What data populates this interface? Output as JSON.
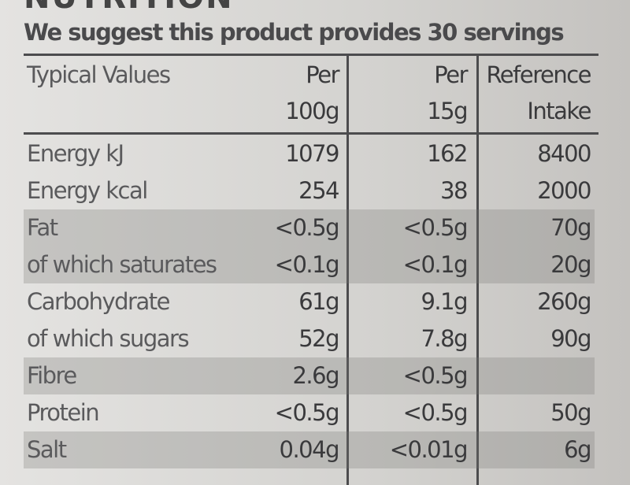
{
  "title": "NUTRITION",
  "subtitle": "We suggest this product provides 30 servings",
  "table": {
    "header": [
      [
        "Typical Values"
      ],
      [
        "Per",
        "100g"
      ],
      [
        "Per",
        "15g"
      ],
      [
        "Reference",
        "Intake"
      ]
    ],
    "rows": [
      [
        "Energy kJ",
        "1079",
        "162",
        "8400"
      ],
      [
        "Energy kcal",
        "254",
        "38",
        "2000"
      ],
      [
        "Fat",
        "<0.5g",
        "<0.5g",
        "70g"
      ],
      [
        "of which saturates",
        "<0.1g",
        "<0.1g",
        "20g"
      ],
      [
        "Carbohydrate",
        "61g",
        "9.1g",
        "260g"
      ],
      [
        "of which sugars",
        "52g",
        "7.8g",
        "90g"
      ],
      [
        "Fibre",
        "2.6g",
        "<0.5g",
        null
      ],
      [
        "Protein",
        "<0.5g",
        "<0.5g",
        "50g"
      ],
      [
        "Salt",
        "0.04g",
        "<0.01g",
        "6g"
      ]
    ]
  }
}
